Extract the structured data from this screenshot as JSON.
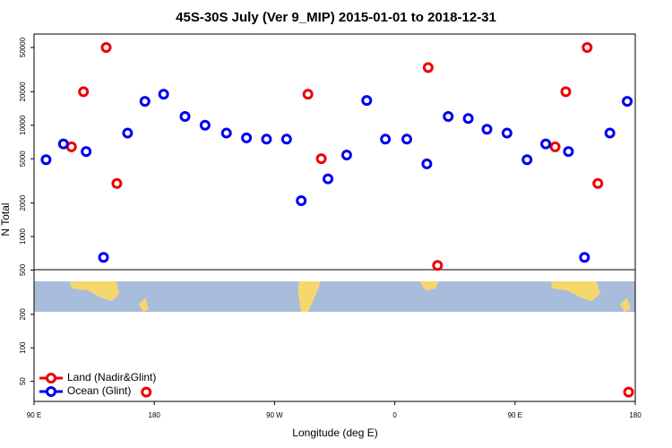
{
  "chart_data": {
    "type": "scatter",
    "title": "45S-30S July (Ver 9_MIP)   2015-01-01 to 2018-12-31",
    "x_label": "Longitude (deg E)",
    "y_label": "N Total",
    "log_y": true,
    "legend": "bottom-left",
    "xlim": [
      90,
      540
    ],
    "ylim": [
      33,
      66000
    ],
    "xticks": [
      {
        "value": 90,
        "label": "90 E"
      },
      {
        "value": 180,
        "label": "180"
      },
      {
        "value": 270,
        "label": "90 W"
      },
      {
        "value": 360,
        "label": "0"
      },
      {
        "value": 450,
        "label": "90 E"
      },
      {
        "value": 540,
        "label": "180"
      }
    ],
    "yticks": [
      50,
      100,
      200,
      500,
      1000,
      2000,
      5000,
      10000,
      20000,
      50000
    ],
    "series": [
      {
        "name": "Land (Nadir&Glint)",
        "color": "#ee0000",
        "x": [
          118,
          127,
          144,
          152,
          174,
          295,
          305,
          385,
          392,
          480,
          488,
          504,
          512,
          535
        ],
        "values": [
          6400,
          20000,
          50000,
          3000,
          40,
          19000,
          5000,
          33000,
          550,
          6400,
          20000,
          50000,
          3000,
          40
        ]
      },
      {
        "name": "Ocean (Glint)",
        "color": "#0000ee",
        "x": [
          99,
          112,
          129,
          142,
          160,
          173,
          187,
          203,
          218,
          234,
          249,
          264,
          279,
          290,
          310,
          324,
          339,
          353,
          369,
          384,
          400,
          415,
          429,
          444,
          459,
          473,
          490,
          502,
          521,
          534
        ],
        "values": [
          4900,
          6800,
          5800,
          650,
          8500,
          16400,
          19000,
          12000,
          10000,
          8500,
          7700,
          7500,
          7500,
          2100,
          3300,
          5400,
          16700,
          7500,
          7500,
          4500,
          12000,
          11500,
          9200,
          8500,
          4900,
          6800,
          5800,
          650,
          8500,
          16400
        ]
      }
    ]
  }
}
